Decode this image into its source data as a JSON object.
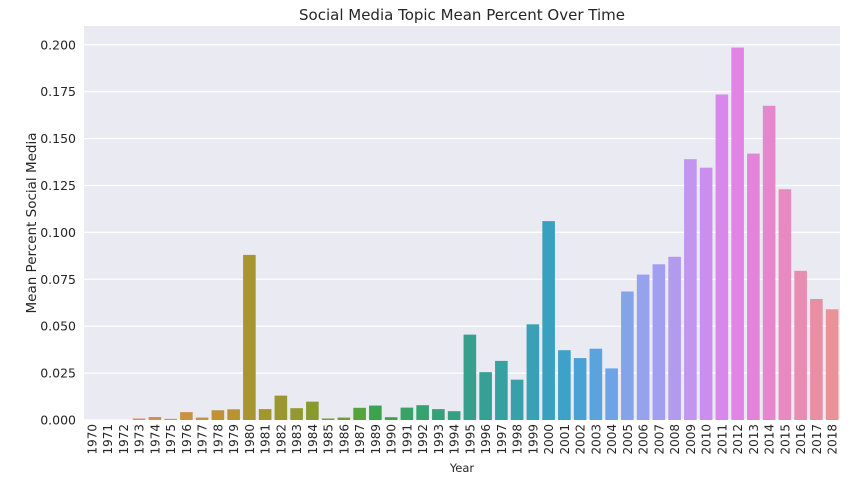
{
  "chart_data": {
    "type": "bar",
    "title": "Social Media Topic Mean Percent Over Time",
    "xlabel": "Year",
    "ylabel": "Mean Percent Social Media",
    "ylim": [
      0,
      0.21
    ],
    "yticks": [
      "0.000",
      "0.025",
      "0.050",
      "0.075",
      "0.100",
      "0.125",
      "0.150",
      "0.175",
      "0.200"
    ],
    "grid": true,
    "categories": [
      "1970",
      "1971",
      "1972",
      "1973",
      "1974",
      "1975",
      "1976",
      "1977",
      "1978",
      "1979",
      "1980",
      "1981",
      "1982",
      "1983",
      "1984",
      "1985",
      "1986",
      "1987",
      "1989",
      "1990",
      "1991",
      "1992",
      "1993",
      "1994",
      "1995",
      "1996",
      "1997",
      "1998",
      "1999",
      "2000",
      "2001",
      "2002",
      "2003",
      "2004",
      "2005",
      "2006",
      "2007",
      "2008",
      "2009",
      "2010",
      "2011",
      "2012",
      "2013",
      "2014",
      "2015",
      "2016",
      "2017",
      "2018"
    ],
    "values": [
      0.0,
      0.0,
      0.0,
      0.0008,
      0.0016,
      0.0006,
      0.0042,
      0.0013,
      0.0052,
      0.0057,
      0.088,
      0.0058,
      0.013,
      0.0063,
      0.0098,
      0.0008,
      0.0013,
      0.0065,
      0.0077,
      0.0015,
      0.0066,
      0.0079,
      0.0058,
      0.0047,
      0.0455,
      0.0255,
      0.0315,
      0.0215,
      0.051,
      0.106,
      0.0372,
      0.033,
      0.038,
      0.0275,
      0.0685,
      0.0775,
      0.083,
      0.087,
      0.139,
      0.1345,
      0.1735,
      0.1985,
      0.142,
      0.1675,
      0.123,
      0.0795,
      0.0645,
      0.059
    ],
    "colors": [
      "#e8868a",
      "#e7887c",
      "#e38a71",
      "#de8b63",
      "#d88d55",
      "#d38e4d",
      "#cc9041",
      "#c7923b",
      "#c09234",
      "#b89330",
      "#a9952f",
      "#a2962f",
      "#9a972f",
      "#92992f",
      "#889a2f",
      "#7d9c2f",
      "#6ea02f",
      "#56a33a",
      "#3ca34d",
      "#3aa35a",
      "#39a266",
      "#38a170",
      "#37a079",
      "#36a083",
      "#36a08d",
      "#36a097",
      "#37a0a1",
      "#38a0ab",
      "#39a0b5",
      "#3aa0bf",
      "#3ea1c9",
      "#4aa2d4",
      "#5ba3dd",
      "#6ea4e6",
      "#85a3e9",
      "#96a2ec",
      "#a29ef0",
      "#b29aef",
      "#c295ee",
      "#cc8eec",
      "#d788ea",
      "#e284e6",
      "#e483da",
      "#e686cd",
      "#e88abf",
      "#e98cb1",
      "#e98fa4",
      "#e99298"
    ]
  }
}
